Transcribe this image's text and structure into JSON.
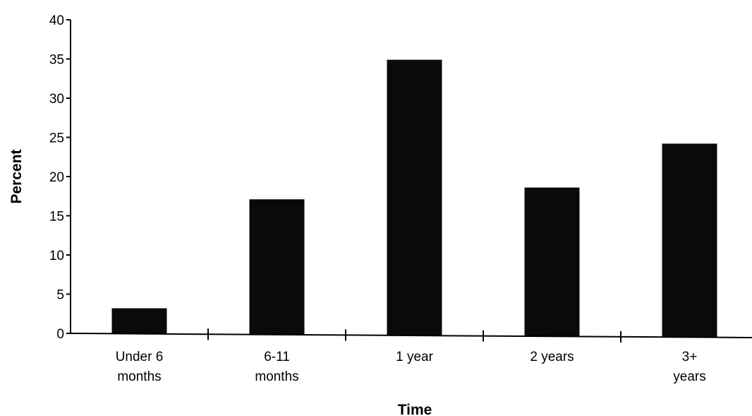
{
  "chart_data": {
    "type": "bar",
    "title": "",
    "xlabel": "Time",
    "ylabel": "Percent",
    "categories": [
      [
        "Under 6",
        "months"
      ],
      [
        "6-11",
        "months"
      ],
      [
        "1 year"
      ],
      [
        "2 years"
      ],
      [
        "3+",
        "years"
      ]
    ],
    "values": [
      3.2,
      17.1,
      34.9,
      18.6,
      24.2
    ],
    "ylim": [
      0,
      40
    ],
    "yticks": [
      "0",
      "5",
      "10",
      "15",
      "20",
      "25",
      "30",
      "35",
      "40"
    ],
    "grid": false,
    "legend": "none",
    "bar_color": "#0a0a0a"
  }
}
